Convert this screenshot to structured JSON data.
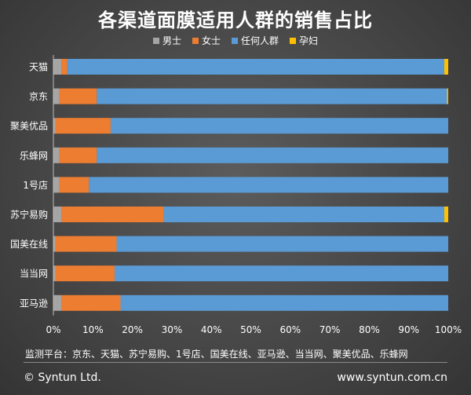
{
  "chart_data": {
    "type": "bar",
    "orientation": "horizontal",
    "stacked": "percent",
    "title": "各渠道面膜适用人群的销售占比",
    "categories": [
      "天猫",
      "京东",
      "聚美优品",
      "乐蜂网",
      "1号店",
      "苏宁易购",
      "国美在线",
      "当当网",
      "亚马逊"
    ],
    "series": [
      {
        "name": "男士",
        "color": "#a5a5a5",
        "values": [
          2,
          1.5,
          0.5,
          1.5,
          1.5,
          2,
          0.5,
          0.5,
          2
        ]
      },
      {
        "name": "女士",
        "color": "#ed7d31",
        "values": [
          1.5,
          9.5,
          14,
          9.5,
          7.5,
          26,
          15.5,
          15,
          15
        ]
      },
      {
        "name": "任何人群",
        "color": "#5b9bd5",
        "values": [
          95.5,
          88.7,
          85.5,
          89,
          91,
          71,
          84,
          84.5,
          83
        ]
      },
      {
        "name": "孕妇",
        "color": "#ffc000",
        "values": [
          1,
          0.3,
          0,
          0,
          0,
          1,
          0,
          0,
          0
        ]
      }
    ],
    "xlim": [
      0,
      100
    ],
    "xticks": [
      "0%",
      "10%",
      "20%",
      "30%",
      "40%",
      "50%",
      "60%",
      "70%",
      "80%",
      "90%",
      "100%"
    ],
    "grid": false,
    "legend_position": "top"
  },
  "footer": {
    "note": "监测平台：京东、天猫、苏宁易购、1号店、国美在线、亚马逊、当当网、聚美优品、乐蜂网",
    "copyright": "© Syntun Ltd.",
    "website": "www.syntun.com.cn"
  }
}
